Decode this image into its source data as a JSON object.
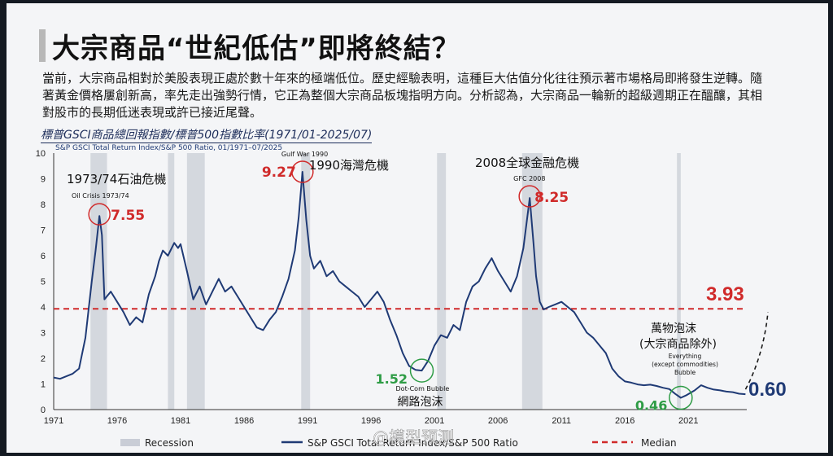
{
  "slide": {
    "title": "大宗商品“世紀低估”即將終結？",
    "body": "當前，大宗商品相對於美股表現正處於數十年來的極端低位。歷史經驗表明，這種巨大估值分化往往預示著市場格局即將發生逆轉。隨著黃金價格屢創新高，率先走出強勢行情，它正為整個大宗商品板塊指明方向。分析認為，大宗商品一輪新的超級週期正在醞釀，其相對股市的長期低迷表現或許已接近尾聲。",
    "chart_caption": "標普GSCI商品總回報指數/標普500指數比率(1971/01-2025/07)",
    "watermark": "@模型预测"
  },
  "colors": {
    "series": "#1f3a75",
    "median": "#d02a2a",
    "recession": "#c9cdd6",
    "low_marker": "#2e9c45",
    "high_marker": "#d02a2a",
    "current_value": "#1f3a75"
  },
  "chart_data": {
    "type": "line",
    "title": "S&P GSCI Total Return Index/S&P 500 Ratio, 01/1971–07/2025",
    "xlim": [
      1971,
      2025.6
    ],
    "ylim": [
      0,
      10
    ],
    "x_ticks": [
      "1971",
      "1976",
      "1981",
      "1986",
      "1991",
      "1996",
      "2001",
      "2006",
      "2011",
      "2016",
      "2021"
    ],
    "y_ticks": [
      "0",
      "1",
      "2",
      "3",
      "4",
      "5",
      "6",
      "7",
      "8",
      "9",
      "10"
    ],
    "grid": false,
    "legend": {
      "position": "bottom",
      "items": [
        {
          "label": "Recession",
          "kind": "band"
        },
        {
          "label": "S&P GSCI Total Return Index/S&P 500 Ratio",
          "kind": "line"
        },
        {
          "label": "Median",
          "kind": "dashed"
        }
      ]
    },
    "median": 3.93,
    "median_label": "3.93",
    "current_label": "0.60",
    "recessions": [
      [
        1973.9,
        1975.2
      ],
      [
        1980.0,
        1980.5
      ],
      [
        1981.5,
        1982.9
      ],
      [
        1990.5,
        1991.2
      ],
      [
        2001.2,
        2001.9
      ],
      [
        2007.9,
        2009.5
      ],
      [
        2020.1,
        2020.4
      ]
    ],
    "series": [
      {
        "points": [
          [
            1971.0,
            1.25
          ],
          [
            1971.5,
            1.2
          ],
          [
            1972.0,
            1.3
          ],
          [
            1972.5,
            1.4
          ],
          [
            1973.0,
            1.6
          ],
          [
            1973.5,
            2.8
          ],
          [
            1974.0,
            5.0
          ],
          [
            1974.3,
            6.2
          ],
          [
            1974.6,
            7.55
          ],
          [
            1974.8,
            6.8
          ],
          [
            1975.0,
            4.3
          ],
          [
            1975.5,
            4.6
          ],
          [
            1976.0,
            4.2
          ],
          [
            1976.5,
            3.8
          ],
          [
            1977.0,
            3.3
          ],
          [
            1977.5,
            3.6
          ],
          [
            1978.0,
            3.4
          ],
          [
            1978.5,
            4.5
          ],
          [
            1979.0,
            5.2
          ],
          [
            1979.3,
            5.8
          ],
          [
            1979.6,
            6.2
          ],
          [
            1980.0,
            6.0
          ],
          [
            1980.5,
            6.5
          ],
          [
            1980.8,
            6.3
          ],
          [
            1981.0,
            6.45
          ],
          [
            1981.5,
            5.4
          ],
          [
            1982.0,
            4.3
          ],
          [
            1982.5,
            4.8
          ],
          [
            1983.0,
            4.1
          ],
          [
            1983.5,
            4.6
          ],
          [
            1984.0,
            5.1
          ],
          [
            1984.5,
            4.6
          ],
          [
            1985.0,
            4.8
          ],
          [
            1985.5,
            4.4
          ],
          [
            1986.0,
            4.0
          ],
          [
            1986.5,
            3.6
          ],
          [
            1987.0,
            3.2
          ],
          [
            1987.5,
            3.1
          ],
          [
            1988.0,
            3.5
          ],
          [
            1988.5,
            3.8
          ],
          [
            1989.0,
            4.4
          ],
          [
            1989.5,
            5.1
          ],
          [
            1990.0,
            6.2
          ],
          [
            1990.3,
            7.5
          ],
          [
            1990.6,
            9.27
          ],
          [
            1990.9,
            7.4
          ],
          [
            1991.2,
            6.0
          ],
          [
            1991.5,
            5.5
          ],
          [
            1992.0,
            5.8
          ],
          [
            1992.5,
            5.2
          ],
          [
            1993.0,
            5.4
          ],
          [
            1993.5,
            5.0
          ],
          [
            1994.0,
            4.8
          ],
          [
            1994.5,
            4.6
          ],
          [
            1995.0,
            4.4
          ],
          [
            1995.5,
            4.0
          ],
          [
            1996.0,
            4.3
          ],
          [
            1996.5,
            4.6
          ],
          [
            1997.0,
            4.2
          ],
          [
            1997.5,
            3.5
          ],
          [
            1998.0,
            2.9
          ],
          [
            1998.5,
            2.2
          ],
          [
            1999.0,
            1.7
          ],
          [
            1999.5,
            1.55
          ],
          [
            2000.0,
            1.52
          ],
          [
            2000.5,
            1.9
          ],
          [
            2001.0,
            2.5
          ],
          [
            2001.5,
            2.9
          ],
          [
            2002.0,
            2.8
          ],
          [
            2002.5,
            3.3
          ],
          [
            2003.0,
            3.1
          ],
          [
            2003.5,
            4.2
          ],
          [
            2004.0,
            4.8
          ],
          [
            2004.5,
            5.0
          ],
          [
            2005.0,
            5.5
          ],
          [
            2005.5,
            5.9
          ],
          [
            2006.0,
            5.4
          ],
          [
            2006.5,
            5.0
          ],
          [
            2007.0,
            4.6
          ],
          [
            2007.5,
            5.2
          ],
          [
            2008.0,
            6.3
          ],
          [
            2008.5,
            8.25
          ],
          [
            2008.8,
            6.5
          ],
          [
            2009.0,
            5.2
          ],
          [
            2009.3,
            4.2
          ],
          [
            2009.6,
            3.9
          ],
          [
            2010.0,
            4.0
          ],
          [
            2010.5,
            4.1
          ],
          [
            2011.0,
            4.2
          ],
          [
            2011.5,
            4.0
          ],
          [
            2012.0,
            3.8
          ],
          [
            2012.5,
            3.4
          ],
          [
            2013.0,
            3.0
          ],
          [
            2013.5,
            2.8
          ],
          [
            2014.0,
            2.5
          ],
          [
            2014.5,
            2.2
          ],
          [
            2015.0,
            1.6
          ],
          [
            2015.5,
            1.3
          ],
          [
            2016.0,
            1.1
          ],
          [
            2016.5,
            1.05
          ],
          [
            2017.0,
            0.98
          ],
          [
            2017.5,
            0.95
          ],
          [
            2018.0,
            0.97
          ],
          [
            2018.5,
            0.92
          ],
          [
            2019.0,
            0.85
          ],
          [
            2019.5,
            0.8
          ],
          [
            2020.0,
            0.6
          ],
          [
            2020.4,
            0.46
          ],
          [
            2020.8,
            0.55
          ],
          [
            2021.5,
            0.75
          ],
          [
            2022.0,
            0.95
          ],
          [
            2022.5,
            0.85
          ],
          [
            2023.0,
            0.78
          ],
          [
            2023.5,
            0.75
          ],
          [
            2024.0,
            0.7
          ],
          [
            2024.5,
            0.68
          ],
          [
            2025.0,
            0.62
          ],
          [
            2025.5,
            0.6
          ]
        ]
      }
    ],
    "annotations": {
      "events": [
        {
          "x": 1974.6,
          "y": 7.55,
          "cn": "1973/74石油危機",
          "en": "Oil Crisis 1973/74",
          "value": "7.55",
          "tone": "high"
        },
        {
          "x": 1990.6,
          "y": 9.27,
          "cn": "1990海灣危機",
          "en": "Gulf War 1990",
          "value": "9.27",
          "tone": "high"
        },
        {
          "x": 2008.5,
          "y": 8.25,
          "cn": "2008全球金融危機",
          "en": "GFC 2008",
          "value": "8.25",
          "tone": "high"
        },
        {
          "x": 2000.0,
          "y": 1.52,
          "cn": "網路泡沫",
          "en": "Dot-Com Bubble",
          "value": "1.52",
          "tone": "low"
        },
        {
          "x": 2020.4,
          "y": 0.46,
          "cn": "萬物泡沫",
          "cn2": "(大宗商品除外)",
          "en": "Everything",
          "en2": "(except commodities)",
          "en3": "Bubble",
          "value": "0.46",
          "tone": "low"
        }
      ]
    }
  }
}
